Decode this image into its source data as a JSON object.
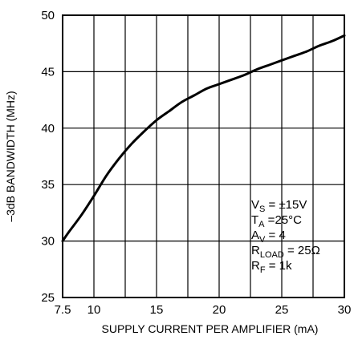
{
  "chart_data": {
    "type": "line",
    "xlabel": "SUPPLY CURRENT PER AMPLIFIER (mA)",
    "ylabel": "–3dB BANDWIDTH (MHz)",
    "xlim": [
      7.5,
      30
    ],
    "ylim": [
      25,
      50
    ],
    "x_ticks": [
      7.5,
      10,
      15,
      20,
      25,
      30
    ],
    "x_tick_labels": [
      "7.5",
      "10",
      "15",
      "20",
      "25",
      "30"
    ],
    "y_ticks": [
      25,
      30,
      35,
      40,
      45,
      50
    ],
    "y_tick_labels": [
      "25",
      "30",
      "35",
      "40",
      "45",
      "50"
    ],
    "x_gridlines": [
      10,
      12.5,
      15,
      17.5,
      20,
      22.5,
      25,
      27.5
    ],
    "y_gridlines": [
      30,
      35,
      40,
      45
    ],
    "grid": true,
    "series": [
      {
        "color": "#000000",
        "x": [
          7.5,
          8,
          9,
          10,
          11,
          12,
          13,
          14,
          15,
          16,
          17,
          18,
          19,
          20,
          21,
          22,
          23,
          24,
          25,
          26,
          27,
          28,
          29,
          30
        ],
        "y": [
          30.0,
          30.8,
          32.3,
          34.0,
          35.8,
          37.3,
          38.6,
          39.7,
          40.7,
          41.5,
          42.3,
          42.9,
          43.5,
          43.9,
          44.3,
          44.7,
          45.2,
          45.6,
          46.0,
          46.4,
          46.8,
          47.3,
          47.7,
          48.2
        ]
      }
    ],
    "annotations": [
      {
        "main": "V",
        "sub": "S",
        "rest": " = ±15V"
      },
      {
        "main": "T",
        "sub": "A",
        "rest": " =25°C"
      },
      {
        "main": "A",
        "sub": "V",
        "rest": " = 4"
      },
      {
        "main": "R",
        "sub": "LOAD",
        "rest": " = 25Ω"
      },
      {
        "main": "R",
        "sub": "F",
        "rest": " = 1k"
      }
    ],
    "annotation_placement": "bottom-right"
  }
}
